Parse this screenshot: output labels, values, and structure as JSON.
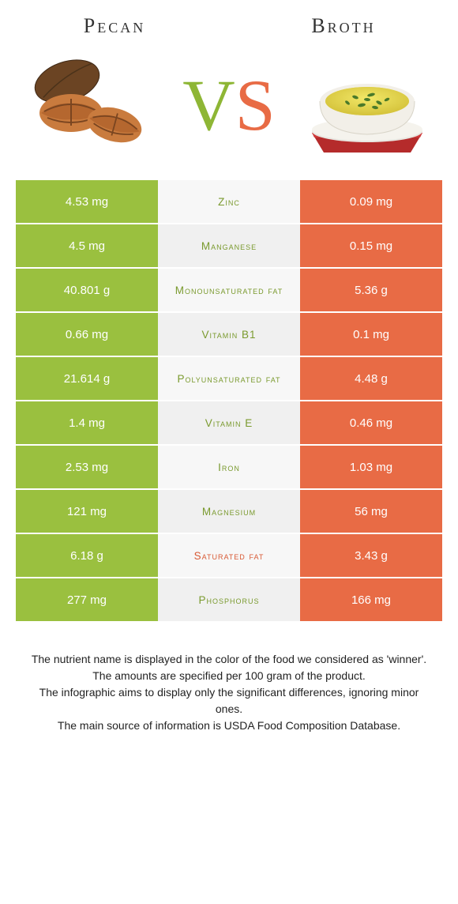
{
  "colors": {
    "left": "#9ac03f",
    "right": "#e86b45",
    "mid_bg_even": "#f7f7f7",
    "mid_bg_odd": "#f0f0f0",
    "winner_left_text": "#7a9a2e",
    "winner_right_text": "#d85a35"
  },
  "header": {
    "left": "Pecan",
    "right": "Broth",
    "vs_v": "V",
    "vs_s": "S"
  },
  "rows": [
    {
      "left": "4.53 mg",
      "mid": "Zinc",
      "right": "0.09 mg",
      "winner": "left"
    },
    {
      "left": "4.5 mg",
      "mid": "Manganese",
      "right": "0.15 mg",
      "winner": "left"
    },
    {
      "left": "40.801 g",
      "mid": "Monounsaturated fat",
      "right": "5.36 g",
      "winner": "left"
    },
    {
      "left": "0.66 mg",
      "mid": "Vitamin B1",
      "right": "0.1 mg",
      "winner": "left"
    },
    {
      "left": "21.614 g",
      "mid": "Polyunsaturated fat",
      "right": "4.48 g",
      "winner": "left"
    },
    {
      "left": "1.4 mg",
      "mid": "Vitamin E",
      "right": "0.46 mg",
      "winner": "left"
    },
    {
      "left": "2.53 mg",
      "mid": "Iron",
      "right": "1.03 mg",
      "winner": "left"
    },
    {
      "left": "121 mg",
      "mid": "Magnesium",
      "right": "56 mg",
      "winner": "left"
    },
    {
      "left": "6.18 g",
      "mid": "Saturated fat",
      "right": "3.43 g",
      "winner": "right"
    },
    {
      "left": "277 mg",
      "mid": "Phosphorus",
      "right": "166 mg",
      "winner": "left"
    }
  ],
  "footer": {
    "l1": "The nutrient name is displayed in the color of the food we considered as 'winner'.",
    "l2": "The amounts are specified per 100 gram of the product.",
    "l3": "The infographic aims to display only the significant differences, ignoring minor ones.",
    "l4": "The main source of information is USDA Food Composition Database."
  }
}
